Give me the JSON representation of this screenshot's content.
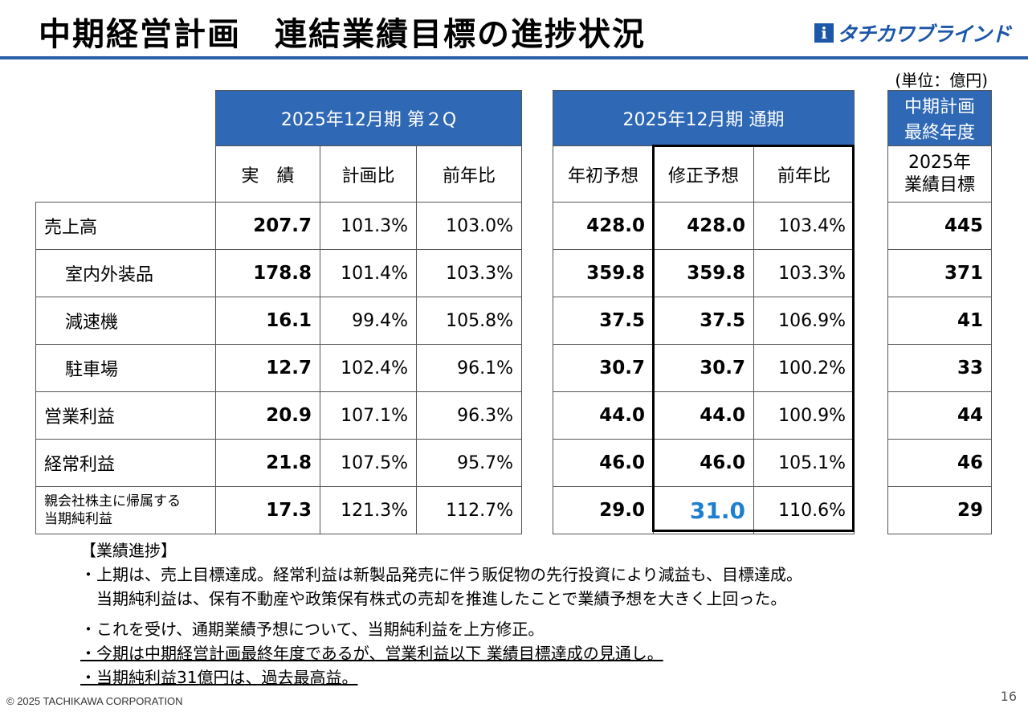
{
  "title": "中期経営計画　連結業績目標の進捗状況",
  "logo": {
    "mark": "i",
    "text": "タチカワブラインド"
  },
  "unit": "(単位：億円)",
  "table": {
    "q2_header": "2025年12月期 第２Q",
    "fy_header": "2025年12月期 通期",
    "final_header": [
      "中期計画",
      "最終年度"
    ],
    "q2_cols": [
      "実　績",
      "計画比",
      "前年比"
    ],
    "fy_cols": [
      "年初予想",
      "修正予想",
      "前年比"
    ],
    "final_col": [
      "2025年",
      "業績目標"
    ],
    "rows": [
      {
        "label": "売上高",
        "q2_actual": "207.7",
        "q2_plan": "101.3%",
        "q2_yoy": "103.0%",
        "fy_initial": "428.0",
        "fy_revised": "428.0",
        "fy_yoy": "103.4%",
        "target": "445"
      },
      {
        "label": "室内外装品",
        "q2_actual": "178.8",
        "q2_plan": "101.4%",
        "q2_yoy": "103.3%",
        "fy_initial": "359.8",
        "fy_revised": "359.8",
        "fy_yoy": "103.3%",
        "target": "371"
      },
      {
        "label": "減速機",
        "q2_actual": "16.1",
        "q2_plan": "99.4%",
        "q2_yoy": "105.8%",
        "fy_initial": "37.5",
        "fy_revised": "37.5",
        "fy_yoy": "106.9%",
        "target": "41"
      },
      {
        "label": "駐車場",
        "q2_actual": "12.7",
        "q2_plan": "102.4%",
        "q2_yoy": "96.1%",
        "fy_initial": "30.7",
        "fy_revised": "30.7",
        "fy_yoy": "100.2%",
        "target": "33"
      },
      {
        "label": "営業利益",
        "q2_actual": "20.9",
        "q2_plan": "107.1%",
        "q2_yoy": "96.3%",
        "fy_initial": "44.0",
        "fy_revised": "44.0",
        "fy_yoy": "100.9%",
        "target": "44"
      },
      {
        "label": "経常利益",
        "q2_actual": "21.8",
        "q2_plan": "107.5%",
        "q2_yoy": "95.7%",
        "fy_initial": "46.0",
        "fy_revised": "46.0",
        "fy_yoy": "105.1%",
        "target": "46"
      },
      {
        "label": "親会社株主に帰属する当期純利益",
        "q2_actual": "17.3",
        "q2_plan": "121.3%",
        "q2_yoy": "112.7%",
        "fy_initial": "29.0",
        "fy_revised": "31.0",
        "fy_yoy": "110.6%",
        "target": "29"
      }
    ]
  },
  "progress": {
    "heading": "【業績進捗】",
    "bullets": [
      "・上期は、売上目標達成。経常利益は新製品発売に伴う販促物の先行投資により減益も、目標達成。",
      "　当期純利益は、保有不動産や政策保有株式の売却を推進したことで業績予想を大きく上回った。",
      "・これを受け、通期業績予想について、当期純利益を上方修正。",
      "・今期は中期経営計画最終年度であるが、営業利益以下 業績目標達成の見通し。",
      "・当期純利益31億円は、過去最高益。"
    ]
  },
  "footer": {
    "copyright": "© 2025 TACHIKAWA CORPORATION",
    "page": "16"
  },
  "colors": {
    "header_blue": "#2f68b5",
    "highlight": "#1e7fd0",
    "rule": "#2b5fa8"
  }
}
